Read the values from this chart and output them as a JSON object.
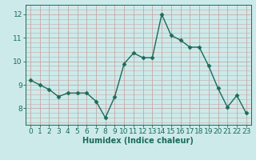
{
  "x": [
    0,
    1,
    2,
    3,
    4,
    5,
    6,
    7,
    8,
    9,
    10,
    11,
    12,
    13,
    14,
    15,
    16,
    17,
    18,
    19,
    20,
    21,
    22,
    23
  ],
  "y": [
    9.2,
    9.0,
    8.8,
    8.5,
    8.65,
    8.65,
    8.65,
    8.3,
    7.6,
    8.5,
    9.9,
    10.35,
    10.15,
    10.15,
    12.0,
    11.1,
    10.9,
    10.6,
    10.6,
    9.8,
    8.85,
    8.05,
    8.55,
    7.8
  ],
  "line_color": "#1a6b5a",
  "marker": "D",
  "marker_size": 2.5,
  "bg_color": "#cdeaea",
  "grid_color": "#c8a8a8",
  "xlabel": "Humidex (Indice chaleur)",
  "xlabel_fontsize": 7,
  "tick_fontsize": 6.5,
  "ylim": [
    7.3,
    12.4
  ],
  "xlim": [
    -0.5,
    23.5
  ],
  "yticks": [
    8,
    9,
    10,
    11,
    12
  ],
  "xticks": [
    0,
    1,
    2,
    3,
    4,
    5,
    6,
    7,
    8,
    9,
    10,
    11,
    12,
    13,
    14,
    15,
    16,
    17,
    18,
    19,
    20,
    21,
    22,
    23
  ]
}
